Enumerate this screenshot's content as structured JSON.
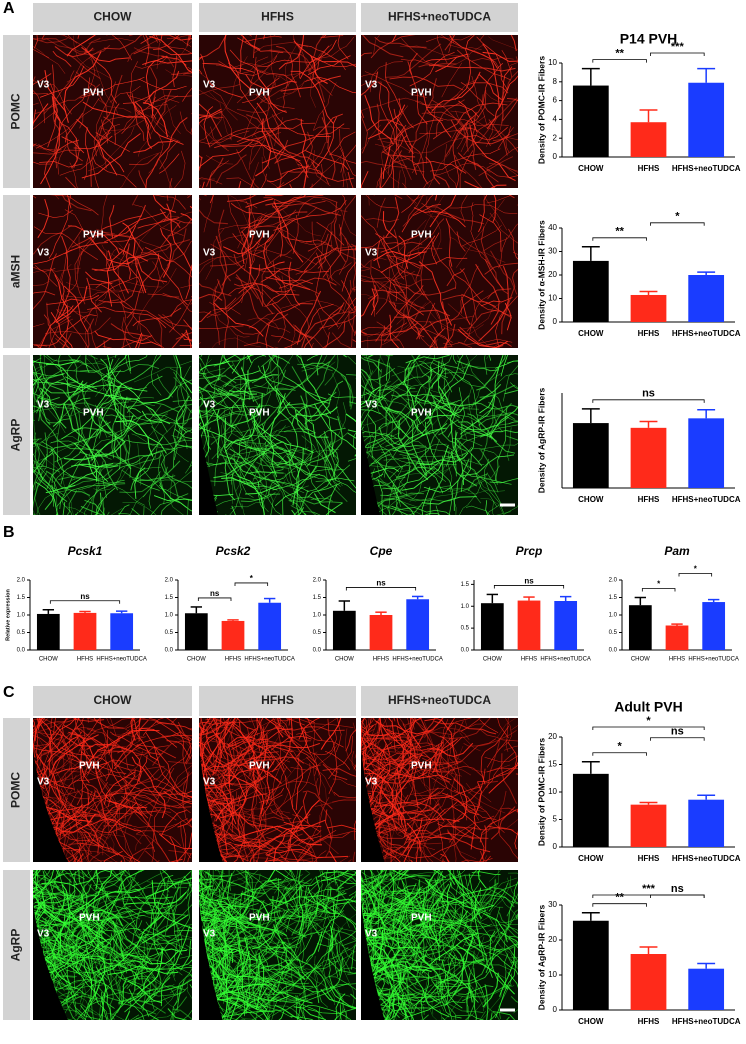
{
  "panel_letters": [
    "A",
    "B",
    "C"
  ],
  "image_columns": [
    "CHOW",
    "HFHS",
    "HFHS+neoTUDCA"
  ],
  "rows_a": [
    "POMC",
    "aMSH",
    "AgRP"
  ],
  "rows_c": [
    "POMC",
    "AgRP"
  ],
  "image_labels": [
    "V3",
    "PVH"
  ],
  "chart_data": [
    {
      "type": "bar",
      "title": "P14 PVH",
      "ylabel": "Density of POMC-IR Fibers",
      "categories": [
        "CHOW",
        "HFHS",
        "HFHS+neoTUDCA"
      ],
      "values": [
        7.6,
        3.7,
        7.9
      ],
      "errors": [
        1.8,
        1.3,
        1.5
      ],
      "colors": [
        "#000000",
        "#ff2a1a",
        "#1a3cff"
      ],
      "ylim": [
        0,
        10
      ],
      "yticks": [
        0,
        2,
        4,
        6,
        8,
        10
      ],
      "significance": [
        {
          "from": 0,
          "to": 1,
          "label": "**"
        },
        {
          "from": 1,
          "to": 2,
          "label": "***"
        }
      ]
    },
    {
      "type": "bar",
      "ylabel": "Density of α-MSH-IR Fibers",
      "categories": [
        "CHOW",
        "HFHS",
        "HFHS+neoTUDCA"
      ],
      "values": [
        26,
        11.5,
        20
      ],
      "errors": [
        6,
        1.5,
        1.2
      ],
      "colors": [
        "#000000",
        "#ff2a1a",
        "#1a3cff"
      ],
      "ylim": [
        0,
        40
      ],
      "yticks": [
        0,
        10,
        20,
        30,
        40
      ],
      "significance": [
        {
          "from": 0,
          "to": 1,
          "label": "**"
        },
        {
          "from": 1,
          "to": 2,
          "label": "*"
        }
      ]
    },
    {
      "type": "bar",
      "ylabel": "Density of AgRP-IR Fibers",
      "categories": [
        "CHOW",
        "HFHS",
        "HFHS+neoTUDCA"
      ],
      "values": [
        20.5,
        19,
        22
      ],
      "errors": [
        4.5,
        2,
        2.7
      ],
      "colors": [
        "#000000",
        "#ff2a1a",
        "#1a3cff"
      ],
      "ylim": [
        0,
        30
      ],
      "significance": [
        {
          "from": 0,
          "to": 2,
          "label": "ns"
        }
      ]
    },
    {
      "type": "bar",
      "title": "Pcsk1",
      "ylabel": "Relative expression",
      "categories": [
        "CHOW",
        "HFHS",
        "HFHS+neoTUDCA"
      ],
      "values": [
        1.03,
        1.06,
        1.05
      ],
      "errors": [
        0.12,
        0.04,
        0.06
      ],
      "colors": [
        "#000000",
        "#ff2a1a",
        "#1a3cff"
      ],
      "ylim": [
        0,
        2
      ],
      "yticks": [
        {
          "value": 0,
          "label": "0.0"
        },
        0.5,
        {
          "value": 1,
          "label": "1.0"
        },
        1.5,
        {
          "value": 2,
          "label": "2.0"
        }
      ],
      "significance": [
        {
          "from": 0,
          "to": 2,
          "label": "ns"
        }
      ]
    },
    {
      "type": "bar",
      "title": "Pcsk2",
      "categories": [
        "CHOW",
        "HFHS",
        "HFHS+neoTUDCA"
      ],
      "values": [
        1.05,
        0.83,
        1.35
      ],
      "errors": [
        0.18,
        0.03,
        0.12
      ],
      "colors": [
        "#000000",
        "#ff2a1a",
        "#1a3cff"
      ],
      "ylim": [
        0,
        2
      ],
      "yticks": [
        {
          "value": 0,
          "label": "0.0"
        },
        0.5,
        {
          "value": 1,
          "label": "1.0"
        },
        1.5,
        {
          "value": 2,
          "label": "2.0"
        }
      ],
      "significance": [
        {
          "from": 0,
          "to": 1,
          "label": "ns"
        },
        {
          "from": 1,
          "to": 2,
          "label": "*"
        }
      ]
    },
    {
      "type": "bar",
      "title": "Cpe",
      "categories": [
        "CHOW",
        "HFHS",
        "HFHS+neoTUDCA"
      ],
      "values": [
        1.12,
        1.0,
        1.45
      ],
      "errors": [
        0.28,
        0.08,
        0.08
      ],
      "colors": [
        "#000000",
        "#ff2a1a",
        "#1a3cff"
      ],
      "ylim": [
        0,
        2
      ],
      "yticks": [
        {
          "value": 0,
          "label": "0.0"
        },
        0.5,
        {
          "value": 1,
          "label": "1.0"
        },
        1.5,
        {
          "value": 2,
          "label": "2.0"
        }
      ],
      "significance": [
        {
          "from": 0,
          "to": 2,
          "label": "ns"
        }
      ]
    },
    {
      "type": "bar",
      "title": "Prcp",
      "categories": [
        "CHOW",
        "HFHS",
        "HFHS+neoTUDCA"
      ],
      "values": [
        1.07,
        1.13,
        1.12
      ],
      "errors": [
        0.2,
        0.08,
        0.1
      ],
      "colors": [
        "#000000",
        "#ff2a1a",
        "#1a3cff"
      ],
      "ylim": [
        0,
        1.6
      ],
      "yticks": [
        {
          "value": 0,
          "label": "0.0"
        },
        0.5,
        {
          "value": 1,
          "label": "1.0"
        },
        1.5
      ],
      "significance": [
        {
          "from": 0,
          "to": 2,
          "label": "ns"
        }
      ]
    },
    {
      "type": "bar",
      "title": "Pam",
      "categories": [
        "CHOW",
        "HFHS",
        "HFHS+neoTUDCA"
      ],
      "values": [
        1.28,
        0.7,
        1.37
      ],
      "errors": [
        0.22,
        0.04,
        0.07
      ],
      "colors": [
        "#000000",
        "#ff2a1a",
        "#1a3cff"
      ],
      "ylim": [
        0,
        2
      ],
      "yticks": [
        {
          "value": 0,
          "label": "0.0"
        },
        0.5,
        {
          "value": 1,
          "label": "1.0"
        },
        1.5,
        {
          "value": 2,
          "label": "2.0"
        }
      ],
      "significance": [
        {
          "from": 0,
          "to": 1,
          "label": "*"
        },
        {
          "from": 1,
          "to": 2,
          "label": "*"
        }
      ]
    },
    {
      "type": "bar",
      "title": "Adult PVH",
      "ylabel": "Density of POMC-IR Fibers",
      "categories": [
        "CHOW",
        "HFHS",
        "HFHS+neoTUDCA"
      ],
      "values": [
        13.3,
        7.7,
        8.6
      ],
      "errors": [
        2.2,
        0.4,
        0.8
      ],
      "colors": [
        "#000000",
        "#ff2a1a",
        "#1a3cff"
      ],
      "ylim": [
        0,
        20
      ],
      "yticks": [
        0,
        5,
        10,
        15,
        20
      ],
      "significance": [
        {
          "from": 0,
          "to": 1,
          "label": "*"
        },
        {
          "from": 0,
          "to": 2,
          "label": "*"
        },
        {
          "from": 1,
          "to": 2,
          "label": "ns"
        }
      ]
    },
    {
      "type": "bar",
      "ylabel": "Density of AgRP-IR Fibers",
      "categories": [
        "CHOW",
        "HFHS",
        "HFHS+neoTUDCA"
      ],
      "values": [
        25.5,
        16,
        11.8
      ],
      "errors": [
        2.3,
        2,
        1.5
      ],
      "colors": [
        "#000000",
        "#ff2a1a",
        "#1a3cff"
      ],
      "ylim": [
        0,
        30
      ],
      "yticks": [
        0,
        10,
        20,
        30
      ],
      "significance": [
        {
          "from": 0,
          "to": 1,
          "label": "**"
        },
        {
          "from": 0,
          "to": 2,
          "label": "***"
        },
        {
          "from": 1,
          "to": 2,
          "label": "ns"
        }
      ]
    }
  ]
}
